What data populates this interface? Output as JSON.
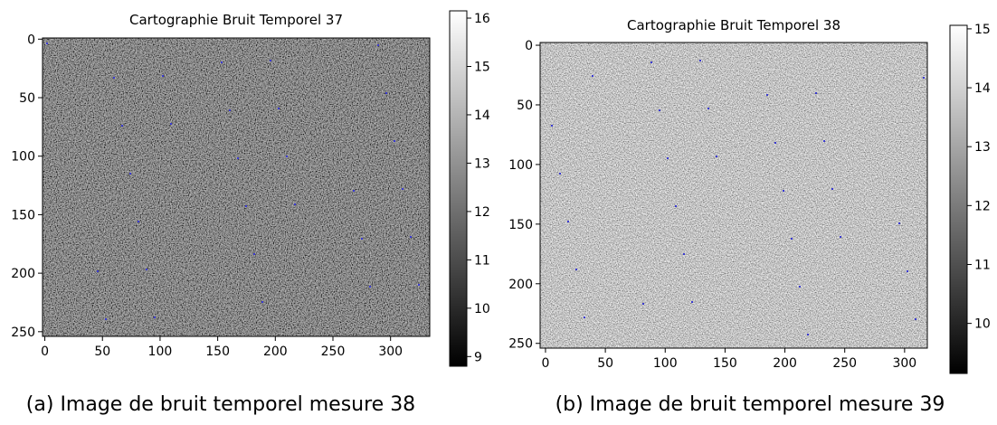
{
  "chart_data": [
    {
      "type": "heatmap",
      "title": "Cartographie Bruit Temporel 37",
      "caption": "(a) Image de bruit temporel mesure 38",
      "xlim": [
        -2,
        334
      ],
      "ylim": [
        254,
        -1
      ],
      "xticks": [
        0,
        50,
        100,
        150,
        200,
        250,
        300
      ],
      "yticks": [
        0,
        50,
        100,
        150,
        200,
        250
      ],
      "colormap": "gray",
      "clim": [
        8.8,
        16.15
      ],
      "cticks": [
        9,
        10,
        11,
        12,
        13,
        14,
        15,
        16
      ]
    },
    {
      "type": "heatmap",
      "title": "Cartographie Bruit Temporel 38",
      "caption": "(b) Image de bruit temporel mesure 39",
      "xlim": [
        -4.5,
        319
      ],
      "ylim": [
        254,
        -2.3
      ],
      "xticks": [
        0,
        50,
        100,
        150,
        200,
        250,
        300
      ],
      "yticks": [
        0,
        50,
        100,
        150,
        200,
        250
      ],
      "colormap": "gray",
      "clim": [
        9.15,
        15.06
      ],
      "cticks": [
        10,
        11,
        12,
        13,
        14,
        15
      ]
    }
  ]
}
